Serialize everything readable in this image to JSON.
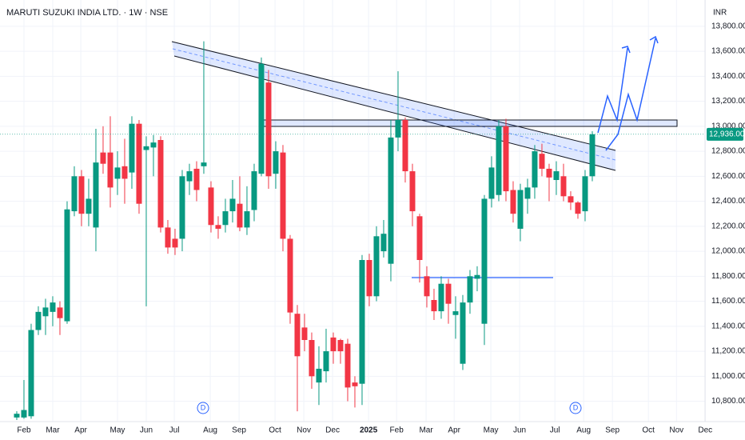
{
  "chart_data": {
    "type": "candlestick",
    "title": "MARUTI SUZUKI INDIA LTD. · 1W · NSE",
    "currency": "INR",
    "last_price": {
      "value": 12936,
      "label": "12,936.00"
    },
    "markers": [
      "D",
      "D"
    ],
    "up_color": "#089981",
    "down_color": "#f23645",
    "ylim": [
      10650,
      14010
    ],
    "yticks": [
      {
        "value": 10800,
        "label": "10,800.00"
      },
      {
        "value": 11000,
        "label": "11,000.00"
      },
      {
        "value": 11200,
        "label": "11,200.00"
      },
      {
        "value": 11400,
        "label": "11,400.00"
      },
      {
        "value": 11600,
        "label": "11,600.00"
      },
      {
        "value": 11800,
        "label": "11,800.00"
      },
      {
        "value": 12000,
        "label": "12,000.00"
      },
      {
        "value": 12200,
        "label": "12,200.00"
      },
      {
        "value": 12400,
        "label": "12,400.00"
      },
      {
        "value": 12600,
        "label": "12,600.00"
      },
      {
        "value": 12800,
        "label": "12,800.00"
      },
      {
        "value": 13000,
        "label": "13,000.00"
      },
      {
        "value": 13200,
        "label": "13,200.00"
      },
      {
        "value": 13400,
        "label": "13,400.00"
      },
      {
        "value": 13600,
        "label": "13,600.00"
      },
      {
        "value": 13800,
        "label": "13,800.00"
      }
    ],
    "xlim": [
      -2.33,
      96.56
    ],
    "xticks": [
      {
        "value": 1,
        "label": "Feb"
      },
      {
        "value": 5,
        "label": "Mar"
      },
      {
        "value": 8.9,
        "label": "Apr"
      },
      {
        "value": 14,
        "label": "May"
      },
      {
        "value": 18,
        "label": "Jun"
      },
      {
        "value": 21.9,
        "label": "Jul"
      },
      {
        "value": 26.9,
        "label": "Aug"
      },
      {
        "value": 30.9,
        "label": "Sep"
      },
      {
        "value": 35.9,
        "label": "Oct"
      },
      {
        "value": 39.9,
        "label": "Nov"
      },
      {
        "value": 43.9,
        "label": "Dec"
      },
      {
        "value": 48.9,
        "label": "2025"
      },
      {
        "value": 52.8,
        "label": "Feb"
      },
      {
        "value": 56.9,
        "label": "Mar"
      },
      {
        "value": 60.8,
        "label": "Apr"
      },
      {
        "value": 65.9,
        "label": "May"
      },
      {
        "value": 69.9,
        "label": "Jun"
      },
      {
        "value": 74.8,
        "label": "Jul"
      },
      {
        "value": 78.8,
        "label": "Aug"
      },
      {
        "value": 82.8,
        "label": "Sep"
      },
      {
        "value": 87.8,
        "label": "Oct"
      },
      {
        "value": 91.7,
        "label": "Nov"
      },
      {
        "value": 95.7,
        "label": "Dec"
      }
    ],
    "open": [
      10670,
      10670,
      10680,
      11370,
      11480,
      11515,
      11550,
      11440,
      12320,
      12600,
      12300,
      12190,
      12790,
      12790,
      12580,
      12680,
      12630,
      13020,
      12810,
      12830,
      12890,
      12190,
      12100,
      12100,
      12560,
      12660,
      12680,
      12510,
      12210,
      12210,
      12320,
      12380,
      12190,
      12330,
      12620,
      13350,
      12620,
      12790,
      12100,
      11500,
      11390,
      11290,
      10950,
      11040,
      11310,
      11290,
      11260,
      10950,
      10940,
      11930,
      11640,
      12000,
      11900,
      12910,
      13050,
      12640,
      12280,
      11800,
      11610,
      11520,
      11740,
      11490,
      11100,
      11590,
      11780,
      11420,
      12420,
      12450,
      13000,
      12490,
      12180,
      12420,
      12510,
      12780,
      12660,
      12570,
      12600,
      12440,
      12390,
      12320,
      12600
    ],
    "high": [
      10720,
      10970,
      11420,
      11560,
      11620,
      11640,
      11600,
      12400,
      12680,
      12650,
      12580,
      12980,
      13000,
      13080,
      12800,
      12900,
      13080,
      13050,
      12920,
      12930,
      12920,
      12250,
      12180,
      12650,
      12700,
      12720,
      13680,
      12560,
      12280,
      12420,
      12570,
      12600,
      12520,
      12700,
      13550,
      13450,
      12880,
      12850,
      12130,
      11570,
      11500,
      11350,
      11240,
      11380,
      11350,
      11300,
      11300,
      11000,
      11970,
      11980,
      12200,
      12250,
      13050,
      13440,
      13070,
      12700,
      12300,
      11880,
      11700,
      11800,
      11780,
      11640,
      11650,
      11850,
      11880,
      12450,
      12760,
      13050,
      13060,
      12560,
      12540,
      12580,
      12850,
      12860,
      12700,
      12720,
      12700,
      12480,
      12400,
      12650,
      12960
    ],
    "low": [
      10650,
      10660,
      10660,
      11330,
      11330,
      11400,
      11330,
      11420,
      12280,
      12200,
      12200,
      12000,
      12620,
      12350,
      12450,
      12380,
      12500,
      12300,
      11560,
      12600,
      12150,
      11980,
      11970,
      12000,
      12450,
      12400,
      12620,
      12150,
      12100,
      12150,
      12230,
      12160,
      12130,
      12240,
      12600,
      12500,
      12500,
      12000,
      11420,
      10720,
      11200,
      10900,
      10770,
      10950,
      11100,
      11100,
      10800,
      10750,
      10770,
      11560,
      11600,
      11950,
      11760,
      12800,
      12550,
      12200,
      11750,
      11550,
      11450,
      11460,
      11420,
      11300,
      11050,
      11500,
      11680,
      11250,
      12350,
      12400,
      12400,
      12230,
      12080,
      12300,
      12420,
      12600,
      12400,
      12450,
      12400,
      12330,
      12260,
      12240,
      12560
    ],
    "close": [
      10700,
      10730,
      11370,
      11515,
      11550,
      11590,
      11465,
      12335,
      12600,
      12300,
      12420,
      12710,
      12700,
      12510,
      12670,
      12580,
      13020,
      12380,
      12840,
      12870,
      12190,
      12030,
      12030,
      12600,
      12640,
      12490,
      12710,
      12210,
      12180,
      12320,
      12420,
      12190,
      12320,
      12640,
      13500,
      12600,
      12800,
      12100,
      11510,
      11160,
      11290,
      11000,
      11060,
      11200,
      11200,
      11200,
      10910,
      10920,
      11930,
      11640,
      12120,
      12140,
      12910,
      13050,
      12640,
      12320,
      11930,
      11640,
      11520,
      11740,
      11580,
      11520,
      11590,
      11800,
      11810,
      12420,
      12670,
      13000,
      12480,
      12300,
      12490,
      12510,
      12800,
      12660,
      12590,
      12640,
      12440,
      12390,
      12300,
      12600,
      12936
    ]
  }
}
